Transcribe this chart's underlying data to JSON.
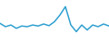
{
  "x": [
    0,
    1,
    2,
    3,
    4,
    5,
    6,
    7,
    8,
    9,
    10,
    11,
    12,
    13,
    14,
    15,
    16,
    17,
    18,
    19,
    20
  ],
  "y": [
    5.0,
    4.0,
    4.5,
    3.5,
    4.2,
    4.0,
    4.5,
    4.2,
    4.8,
    4.3,
    5.5,
    7.5,
    10.0,
    4.5,
    2.5,
    4.5,
    3.0,
    4.5,
    4.0,
    4.8,
    4.2
  ],
  "line_color": "#2e9fd0",
  "linewidth": 1.1,
  "background_color": "#ffffff",
  "ylim": [
    0,
    12
  ],
  "xlim": [
    0,
    20
  ]
}
